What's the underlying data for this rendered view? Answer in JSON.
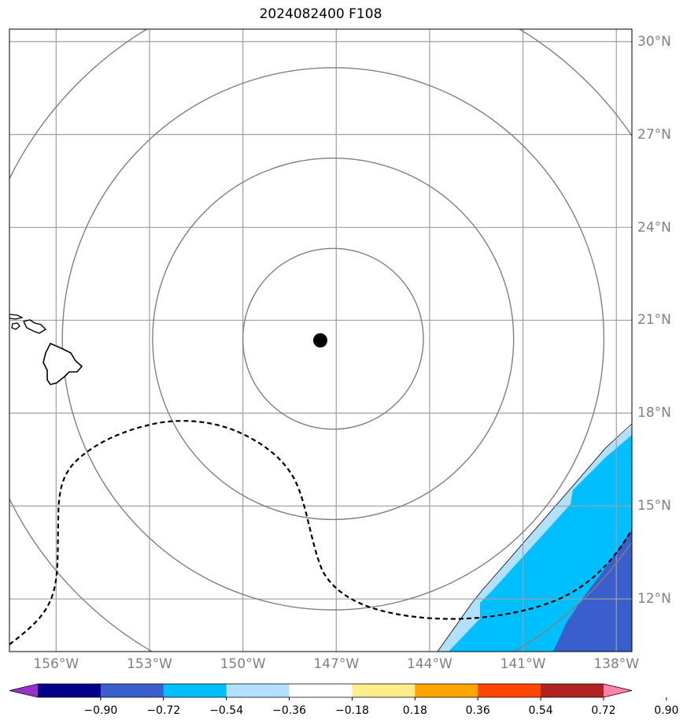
{
  "title": "2024082400 F108",
  "map": {
    "lon_range": [
      -157.5,
      -137.5
    ],
    "lat_range": [
      10.3,
      30.4
    ],
    "center": {
      "lon": -147.1,
      "lat": 20.4
    },
    "range_rings_deg": [
      2.9,
      5.8,
      8.7,
      11.6
    ],
    "grid": true
  },
  "axes": {
    "lon_ticks": [
      {
        "value": -156,
        "label": "156°W"
      },
      {
        "value": -153,
        "label": "153°W"
      },
      {
        "value": -150,
        "label": "150°W"
      },
      {
        "value": -147,
        "label": "147°W"
      },
      {
        "value": -144,
        "label": "144°W"
      },
      {
        "value": -141,
        "label": "141°W"
      },
      {
        "value": -138,
        "label": "138°W"
      }
    ],
    "lat_ticks": [
      {
        "value": 30,
        "label": "30°N"
      },
      {
        "value": 27,
        "label": "27°N"
      },
      {
        "value": 24,
        "label": "24°N"
      },
      {
        "value": 21,
        "label": "21°N"
      },
      {
        "value": 18,
        "label": "18°N"
      },
      {
        "value": 15,
        "label": "15°N"
      },
      {
        "value": 12,
        "label": "12°N"
      }
    ]
  },
  "colorbar": {
    "colors": [
      "#9932cc",
      "#00008b",
      "#3a5fcd",
      "#00bfff",
      "#b2e0ff",
      "#ffffff",
      "#ffec8b",
      "#ffa500",
      "#ff4500",
      "#b22222",
      "#ff82ab"
    ],
    "ticks": [
      "−0.90",
      "−0.72",
      "−0.54",
      "−0.36",
      "−0.18",
      "0.18",
      "0.36",
      "0.54",
      "0.72",
      "0.90"
    ]
  },
  "fill_colors": {
    "light": "#b2e0ff",
    "mid": "#00bfff",
    "dark": "#3a5fcd"
  }
}
